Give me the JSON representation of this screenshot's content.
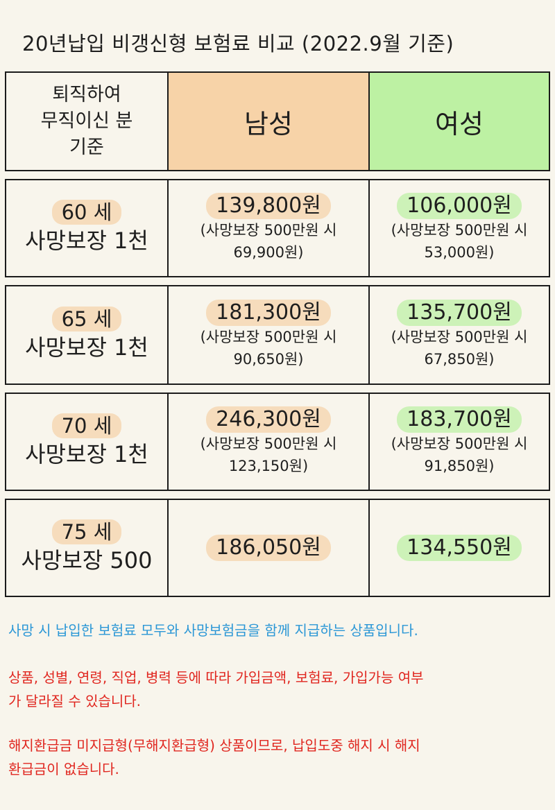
{
  "title": "20년납입 비갱신형 보험료 비교 (2022.9월 기준)",
  "header": {
    "criteria_lines": [
      "퇴직하여",
      "무직이신 분",
      "기준"
    ],
    "male": "남성",
    "female": "여성"
  },
  "rows": [
    {
      "age": "60 세",
      "coverage": "사망보장 1천",
      "male": {
        "price": "139,800원",
        "note_line1": "(사망보장 500만원 시",
        "note_line2": "69,900원)"
      },
      "female": {
        "price": "106,000원",
        "note_line1": "(사망보장 500만원 시",
        "note_line2": "53,000원)"
      }
    },
    {
      "age": "65 세",
      "coverage": "사망보장 1천",
      "male": {
        "price": "181,300원",
        "note_line1": "(사망보장 500만원 시",
        "note_line2": "90,650원)"
      },
      "female": {
        "price": "135,700원",
        "note_line1": "(사망보장 500만원 시",
        "note_line2": "67,850원)"
      }
    },
    {
      "age": "70 세",
      "coverage": "사망보장 1천",
      "male": {
        "price": "246,300원",
        "note_line1": "(사망보장 500만원 시",
        "note_line2": "123,150원)"
      },
      "female": {
        "price": "183,700원",
        "note_line1": "(사망보장 500만원 시",
        "note_line2": "91,850원)"
      }
    },
    {
      "age": "75 세",
      "coverage": "사망보장 500",
      "male": {
        "price": "186,050원"
      },
      "female": {
        "price": "134,550원"
      }
    }
  ],
  "footer": {
    "note1": "사망 시 납입한 보험료 모두와 사망보험금을 함께 지급하는 상품입니다.",
    "note2_line1": "상품, 성별, 연령, 직업, 병력 등에 따라 가입금액, 보험료, 가입가능 여부",
    "note2_line2": "가 달라질 수 있습니다.",
    "note3_line1": "해지환급금 미지급형(무해지환급형) 상품이므로, 납입도중 해지 시 해지",
    "note3_line2": "환급금이 없습니다."
  },
  "colors": {
    "male_header": "#f7d3a8",
    "female_header": "#bdf1a3",
    "note_blue": "#2b97d6",
    "note_red": "#e0261f"
  }
}
